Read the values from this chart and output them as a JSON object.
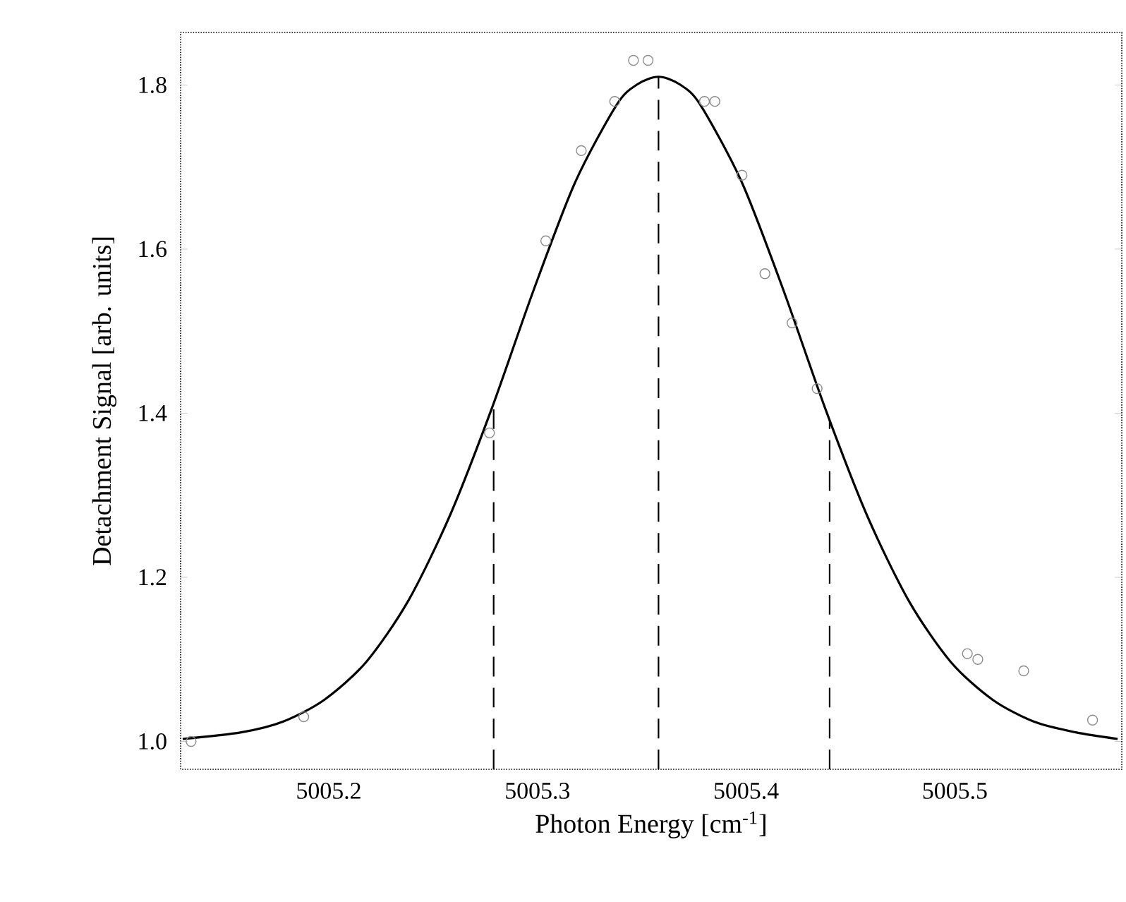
{
  "chart_data": {
    "type": "line",
    "xlabel": "Photon Energy [cm$^{-1}$]",
    "ylabel": "Detachment Signal [arb. units]",
    "xlim": [
      5005.129,
      5005.58
    ],
    "ylim": [
      0.966,
      1.864
    ],
    "xticks": [
      5005.2,
      5005.3,
      5005.4,
      5005.5
    ],
    "yticks": [
      {
        "value": 1.0,
        "label": "1.0"
      },
      1.2,
      1.4,
      1.6,
      1.8
    ],
    "grid": false,
    "series": [
      {
        "color": "#000000",
        "marker": "none",
        "line_style": "solid",
        "x": [
          5005.13,
          5005.158,
          5005.178,
          5005.198,
          5005.218,
          5005.238,
          5005.258,
          5005.278,
          5005.298,
          5005.318,
          5005.338,
          5005.348,
          5005.358,
          5005.368,
          5005.378,
          5005.398,
          5005.418,
          5005.438,
          5005.458,
          5005.478,
          5005.498,
          5005.518,
          5005.538,
          5005.558,
          5005.578
        ],
        "values": [
          1.003,
          1.011,
          1.024,
          1.051,
          1.097,
          1.171,
          1.275,
          1.405,
          1.549,
          1.681,
          1.776,
          1.801,
          1.81,
          1.801,
          1.776,
          1.681,
          1.549,
          1.405,
          1.275,
          1.171,
          1.097,
          1.051,
          1.024,
          1.011,
          1.003
        ]
      },
      {
        "type": "scatter",
        "color": "#8a8a8a",
        "marker": "circle",
        "x": [
          5005.134,
          5005.188,
          5005.277,
          5005.304,
          5005.321,
          5005.337,
          5005.346,
          5005.353,
          5005.38,
          5005.385,
          5005.398,
          5005.409,
          5005.422,
          5005.434,
          5005.506,
          5005.511,
          5005.533,
          5005.566
        ],
        "values": [
          1.0,
          1.03,
          1.376,
          1.61,
          1.72,
          1.78,
          1.83,
          1.83,
          1.78,
          1.78,
          1.69,
          1.57,
          1.51,
          1.43,
          1.107,
          1.1,
          1.086,
          1.026
        ]
      }
    ],
    "ref_lines": [
      {
        "axis": "x",
        "value": 5005.279,
        "line_style": "dashed",
        "color": "#000000"
      },
      {
        "axis": "x",
        "value": 5005.358,
        "line_style": "dashed",
        "color": "#000000"
      },
      {
        "axis": "x",
        "value": 5005.44,
        "line_style": "dashed",
        "color": "#000000"
      }
    ]
  }
}
